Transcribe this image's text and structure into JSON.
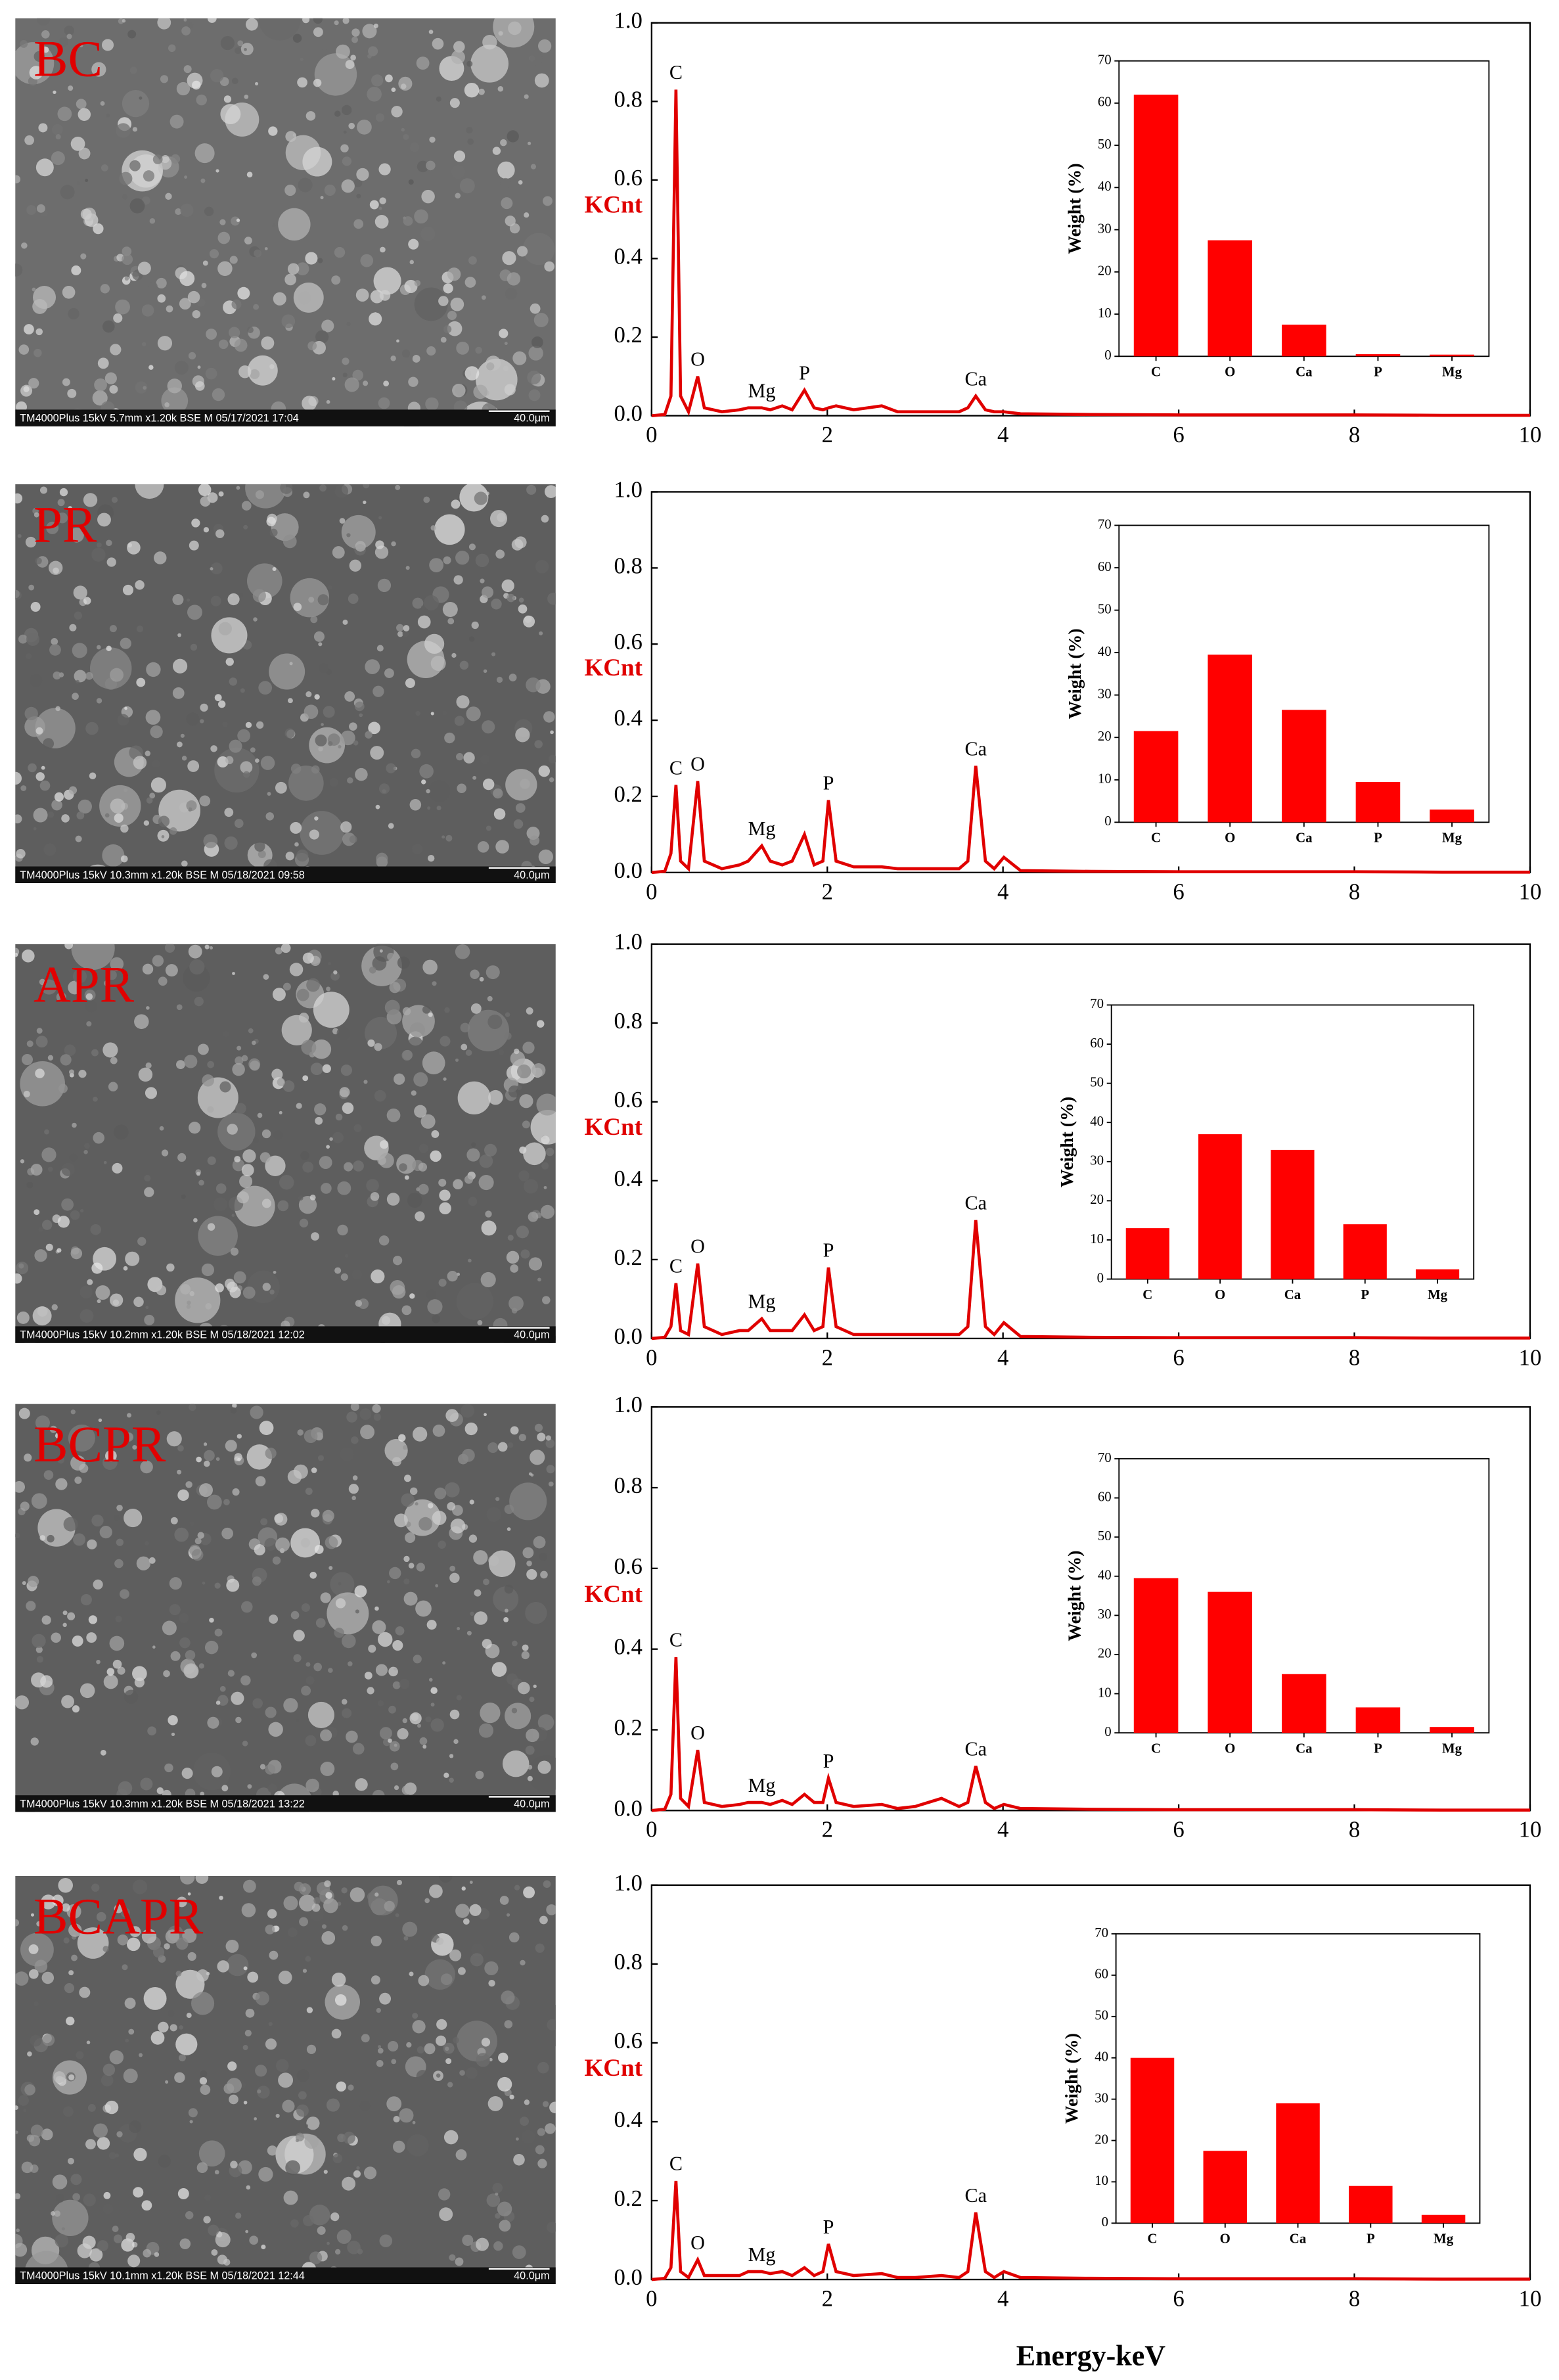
{
  "panels": [
    {
      "label": "BC",
      "caption": "TM4000Plus 15kV 5.7mm x1.20k BSE M 05/17/2021 17:04",
      "scale_bar": "40.0μm"
    },
    {
      "label": "PR",
      "caption": "TM4000Plus 15kV 10.3mm x1.20k BSE M 05/18/2021 09:58",
      "scale_bar": "40.0μm"
    },
    {
      "label": "APR",
      "caption": "TM4000Plus 15kV 10.2mm x1.20k BSE M 05/18/2021 12:02",
      "scale_bar": "40.0μm"
    },
    {
      "label": "BCPR",
      "caption": "TM4000Plus 15kV 10.3mm x1.20k BSE M 05/18/2021 13:22",
      "scale_bar": "40.0μm"
    },
    {
      "label": "BCAPR",
      "caption": "TM4000Plus 15kV 10.1mm x1.20k BSE M 05/18/2021 12:44",
      "scale_bar": "40.0μm"
    }
  ],
  "chart_data": [
    {
      "type": "line",
      "ylabel": "KCnt",
      "color": "#e00000",
      "xlim": [
        0,
        10
      ],
      "xticks": [
        0,
        2,
        4,
        6,
        8,
        10
      ],
      "ylim": [
        0,
        1
      ],
      "yticks": [
        {
          "value": 0,
          "label": "0.0"
        },
        0.2,
        0.4,
        0.6,
        0.8,
        {
          "value": 1,
          "label": "1.0"
        }
      ],
      "x": [
        0,
        0.15,
        0.22,
        0.277,
        0.33,
        0.42,
        0.525,
        0.6,
        0.8,
        1.0,
        1.1,
        1.254,
        1.35,
        1.487,
        1.6,
        1.74,
        1.85,
        1.95,
        2.013,
        2.1,
        2.3,
        2.62,
        2.8,
        3.0,
        3.3,
        3.5,
        3.6,
        3.69,
        3.8,
        3.9,
        4.01,
        4.2,
        5,
        6,
        7,
        8,
        9,
        10
      ],
      "values": [
        0,
        0.003,
        0.05,
        0.83,
        0.05,
        0.01,
        0.1,
        0.02,
        0.01,
        0.015,
        0.02,
        0.02,
        0.015,
        0.025,
        0.015,
        0.065,
        0.02,
        0.015,
        0.02,
        0.025,
        0.015,
        0.025,
        0.01,
        0.01,
        0.01,
        0.01,
        0.02,
        0.05,
        0.015,
        0.01,
        0.01,
        0.005,
        0.003,
        0.002,
        0.002,
        0.002,
        0.001,
        0.001
      ],
      "point_labels": [
        null,
        null,
        null,
        "C",
        null,
        null,
        "O",
        null,
        null,
        null,
        null,
        "Mg",
        null,
        null,
        null,
        "P",
        null,
        null,
        null,
        null,
        null,
        null,
        null,
        null,
        null,
        null,
        null,
        "Ca",
        null,
        null,
        null,
        null,
        null,
        null,
        null,
        null,
        null,
        null
      ]
    },
    {
      "type": "bar",
      "ylabel": "Weight (%)",
      "color": "#ff0000",
      "categories": [
        "C",
        "O",
        "Ca",
        "P",
        "Mg"
      ],
      "values": [
        62,
        27.5,
        7.5,
        0.5,
        0.4
      ],
      "ylim": [
        0,
        70
      ],
      "yticks": [
        0,
        10,
        20,
        30,
        40,
        50,
        60,
        70
      ]
    },
    {
      "type": "line",
      "ylabel": "KCnt",
      "color": "#e00000",
      "xlim": [
        0,
        10
      ],
      "xticks": [
        0,
        2,
        4,
        6,
        8,
        10
      ],
      "ylim": [
        0,
        1
      ],
      "yticks": [
        {
          "value": 0,
          "label": "0.0"
        },
        0.2,
        0.4,
        0.6,
        0.8,
        {
          "value": 1,
          "label": "1.0"
        }
      ],
      "x": [
        0,
        0.15,
        0.22,
        0.277,
        0.33,
        0.42,
        0.525,
        0.6,
        0.8,
        1.0,
        1.1,
        1.254,
        1.35,
        1.487,
        1.6,
        1.74,
        1.85,
        1.95,
        2.013,
        2.1,
        2.3,
        2.62,
        2.8,
        3.0,
        3.3,
        3.5,
        3.6,
        3.69,
        3.8,
        3.9,
        4.01,
        4.2,
        5,
        6,
        7,
        8,
        9,
        10
      ],
      "values": [
        0,
        0.003,
        0.05,
        0.23,
        0.03,
        0.01,
        0.24,
        0.03,
        0.01,
        0.02,
        0.03,
        0.07,
        0.03,
        0.02,
        0.03,
        0.1,
        0.02,
        0.03,
        0.19,
        0.03,
        0.015,
        0.015,
        0.01,
        0.01,
        0.01,
        0.01,
        0.03,
        0.28,
        0.03,
        0.01,
        0.04,
        0.005,
        0.003,
        0.002,
        0.002,
        0.002,
        0.001,
        0.001
      ],
      "point_labels": [
        null,
        null,
        null,
        "C",
        null,
        null,
        "O",
        null,
        null,
        null,
        null,
        "Mg",
        null,
        null,
        null,
        null,
        null,
        null,
        "P",
        null,
        null,
        null,
        null,
        null,
        null,
        null,
        null,
        "Ca",
        null,
        null,
        null,
        null,
        null,
        null,
        null,
        null,
        null,
        null
      ]
    },
    {
      "type": "bar",
      "ylabel": "Weight (%)",
      "color": "#ff0000",
      "categories": [
        "C",
        "O",
        "Ca",
        "P",
        "Mg"
      ],
      "values": [
        21.5,
        39.5,
        26.5,
        9.5,
        3
      ],
      "ylim": [
        0,
        70
      ],
      "yticks": [
        0,
        10,
        20,
        30,
        40,
        50,
        60,
        70
      ]
    },
    {
      "type": "line",
      "ylabel": "KCnt",
      "color": "#e00000",
      "xlim": [
        0,
        10
      ],
      "xticks": [
        0,
        2,
        4,
        6,
        8,
        10
      ],
      "ylim": [
        0,
        1
      ],
      "yticks": [
        {
          "value": 0,
          "label": "0.0"
        },
        0.2,
        0.4,
        0.6,
        0.8,
        {
          "value": 1,
          "label": "1.0"
        }
      ],
      "x": [
        0,
        0.15,
        0.22,
        0.277,
        0.33,
        0.42,
        0.525,
        0.6,
        0.8,
        1.0,
        1.1,
        1.254,
        1.35,
        1.487,
        1.6,
        1.74,
        1.85,
        1.95,
        2.013,
        2.1,
        2.3,
        2.62,
        2.8,
        3.0,
        3.3,
        3.5,
        3.6,
        3.69,
        3.8,
        3.9,
        4.01,
        4.2,
        5,
        6,
        7,
        8,
        9,
        10
      ],
      "values": [
        0,
        0.003,
        0.03,
        0.14,
        0.02,
        0.01,
        0.19,
        0.03,
        0.01,
        0.02,
        0.02,
        0.05,
        0.02,
        0.02,
        0.02,
        0.06,
        0.02,
        0.03,
        0.18,
        0.03,
        0.01,
        0.01,
        0.01,
        0.01,
        0.01,
        0.01,
        0.03,
        0.3,
        0.03,
        0.01,
        0.04,
        0.005,
        0.003,
        0.002,
        0.002,
        0.002,
        0.001,
        0.001
      ],
      "point_labels": [
        null,
        null,
        null,
        "C",
        null,
        null,
        "O",
        null,
        null,
        null,
        null,
        "Mg",
        null,
        null,
        null,
        null,
        null,
        null,
        "P",
        null,
        null,
        null,
        null,
        null,
        null,
        null,
        null,
        "Ca",
        null,
        null,
        null,
        null,
        null,
        null,
        null,
        null,
        null,
        null
      ]
    },
    {
      "type": "bar",
      "ylabel": "Weight (%)",
      "color": "#ff0000",
      "categories": [
        "C",
        "O",
        "Ca",
        "P",
        "Mg"
      ],
      "values": [
        13,
        37,
        33,
        14,
        2.5
      ],
      "ylim": [
        0,
        70
      ],
      "yticks": [
        0,
        10,
        20,
        30,
        40,
        50,
        60,
        70
      ]
    },
    {
      "type": "line",
      "ylabel": "KCnt",
      "color": "#e00000",
      "xlim": [
        0,
        10
      ],
      "xticks": [
        0,
        2,
        4,
        6,
        8,
        10
      ],
      "ylim": [
        0,
        1
      ],
      "yticks": [
        {
          "value": 0,
          "label": "0.0"
        },
        0.2,
        0.4,
        0.6,
        0.8,
        {
          "value": 1,
          "label": "1.0"
        }
      ],
      "x": [
        0,
        0.15,
        0.22,
        0.277,
        0.33,
        0.42,
        0.525,
        0.6,
        0.8,
        1.0,
        1.1,
        1.254,
        1.35,
        1.487,
        1.6,
        1.74,
        1.85,
        1.95,
        2.013,
        2.1,
        2.3,
        2.62,
        2.8,
        3.0,
        3.3,
        3.5,
        3.6,
        3.69,
        3.8,
        3.9,
        4.01,
        4.2,
        5,
        6,
        7,
        8,
        9,
        10
      ],
      "values": [
        0,
        0.003,
        0.04,
        0.38,
        0.03,
        0.01,
        0.15,
        0.02,
        0.01,
        0.015,
        0.02,
        0.02,
        0.015,
        0.025,
        0.015,
        0.04,
        0.02,
        0.02,
        0.08,
        0.02,
        0.01,
        0.015,
        0.005,
        0.01,
        0.03,
        0.01,
        0.02,
        0.11,
        0.02,
        0.005,
        0.015,
        0.005,
        0.003,
        0.002,
        0.002,
        0.002,
        0.001,
        0.001
      ],
      "point_labels": [
        null,
        null,
        null,
        "C",
        null,
        null,
        "O",
        null,
        null,
        null,
        null,
        "Mg",
        null,
        null,
        null,
        null,
        null,
        null,
        "P",
        null,
        null,
        null,
        null,
        null,
        null,
        null,
        null,
        "Ca",
        null,
        null,
        null,
        null,
        null,
        null,
        null,
        null,
        null,
        null
      ]
    },
    {
      "type": "bar",
      "ylabel": "Weight (%)",
      "color": "#ff0000",
      "categories": [
        "C",
        "O",
        "Ca",
        "P",
        "Mg"
      ],
      "values": [
        39.5,
        36,
        15,
        6.5,
        1.5
      ],
      "ylim": [
        0,
        70
      ],
      "yticks": [
        0,
        10,
        20,
        30,
        40,
        50,
        60,
        70
      ]
    },
    {
      "type": "line",
      "ylabel": "KCnt",
      "xlabel": "Energy-keV",
      "color": "#e00000",
      "xlim": [
        0,
        10
      ],
      "xticks": [
        0,
        2,
        4,
        6,
        8,
        10
      ],
      "ylim": [
        0,
        1
      ],
      "yticks": [
        {
          "value": 0,
          "label": "0.0"
        },
        0.2,
        0.4,
        0.6,
        0.8,
        {
          "value": 1,
          "label": "1.0"
        }
      ],
      "x": [
        0,
        0.15,
        0.22,
        0.277,
        0.33,
        0.42,
        0.525,
        0.6,
        0.8,
        1.0,
        1.1,
        1.254,
        1.35,
        1.487,
        1.6,
        1.74,
        1.85,
        1.95,
        2.013,
        2.1,
        2.3,
        2.62,
        2.8,
        3.0,
        3.3,
        3.5,
        3.6,
        3.69,
        3.8,
        3.9,
        4.01,
        4.2,
        5,
        6,
        7,
        8,
        9,
        10
      ],
      "values": [
        0,
        0.003,
        0.03,
        0.25,
        0.02,
        0.005,
        0.05,
        0.01,
        0.01,
        0.01,
        0.02,
        0.02,
        0.015,
        0.02,
        0.01,
        0.03,
        0.01,
        0.02,
        0.09,
        0.02,
        0.01,
        0.015,
        0.005,
        0.005,
        0.01,
        0.005,
        0.02,
        0.17,
        0.02,
        0.005,
        0.02,
        0.005,
        0.003,
        0.002,
        0.002,
        0.002,
        0.001,
        0.001
      ],
      "point_labels": [
        null,
        null,
        null,
        "C",
        null,
        null,
        "O",
        null,
        null,
        null,
        null,
        "Mg",
        null,
        null,
        null,
        null,
        null,
        null,
        "P",
        null,
        null,
        null,
        null,
        null,
        null,
        null,
        null,
        "Ca",
        null,
        null,
        null,
        null,
        null,
        null,
        null,
        null,
        null,
        null
      ]
    },
    {
      "type": "bar",
      "ylabel": "Weight (%)",
      "color": "#ff0000",
      "categories": [
        "C",
        "O",
        "Ca",
        "P",
        "Mg"
      ],
      "values": [
        40,
        17.5,
        29,
        9,
        2
      ],
      "ylim": [
        0,
        70
      ],
      "yticks": [
        0,
        10,
        20,
        30,
        40,
        50,
        60,
        70
      ]
    }
  ]
}
